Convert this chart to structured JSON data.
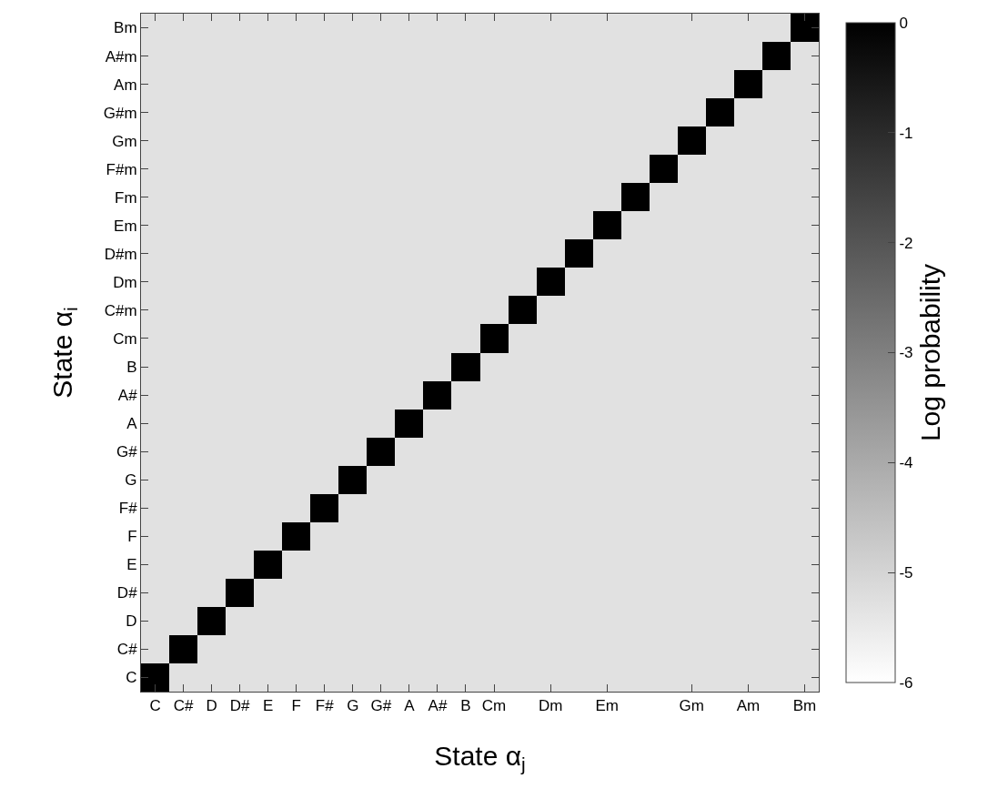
{
  "chart_data": {
    "type": "heatmap",
    "xlabel": "State α$_{j}$",
    "ylabel": "State α$_{i}$",
    "clabel": "Log probability",
    "categories": [
      "C",
      "C#",
      "D",
      "D#",
      "E",
      "F",
      "F#",
      "G",
      "G#",
      "A",
      "A#",
      "B",
      "Cm",
      null,
      "Dm",
      null,
      "Em",
      null,
      null,
      "Gm",
      null,
      "Am",
      null,
      "Bm"
    ],
    "y_categories": [
      "Bm",
      "A#m",
      "Am",
      "G#m",
      "Gm",
      "F#m",
      "Fm",
      "Em",
      "D#m",
      "Dm",
      "C#m",
      "Cm",
      "B",
      "A#",
      "A",
      "G#",
      "G",
      "F#",
      "F",
      "E",
      "D#",
      "D",
      "C#",
      "C"
    ],
    "cells": [
      [
        -5.3,
        -5.3,
        -5.3,
        -5.3,
        -5.3,
        -5.3,
        -5.3,
        -5.3,
        -5.3,
        -5.3,
        -5.3,
        -5.3,
        -5.3,
        -5.3,
        -5.3,
        -5.3,
        -5.3,
        -5.3,
        -5.3,
        -5.3,
        -5.3,
        -5.3,
        -5.3,
        0
      ],
      [
        -5.3,
        -5.3,
        -5.3,
        -5.3,
        -5.3,
        -5.3,
        -5.3,
        -5.3,
        -5.3,
        -5.3,
        -5.3,
        -5.3,
        -5.3,
        -5.3,
        -5.3,
        -5.3,
        -5.3,
        -5.3,
        -5.3,
        -5.3,
        -5.3,
        -5.3,
        0,
        -5.3
      ],
      [
        -5.3,
        -5.3,
        -5.3,
        -5.3,
        -5.3,
        -5.3,
        -5.3,
        -5.3,
        -5.3,
        -5.3,
        -5.3,
        -5.3,
        -5.3,
        -5.3,
        -5.3,
        -5.3,
        -5.3,
        -5.3,
        -5.3,
        -5.3,
        -5.3,
        0,
        -5.3,
        -5.3
      ],
      [
        -5.3,
        -5.3,
        -5.3,
        -5.3,
        -5.3,
        -5.3,
        -5.3,
        -5.3,
        -5.3,
        -5.3,
        -5.3,
        -5.3,
        -5.3,
        -5.3,
        -5.3,
        -5.3,
        -5.3,
        -5.3,
        -5.3,
        -5.3,
        0,
        -5.3,
        -5.3,
        -5.3
      ],
      [
        -5.3,
        -5.3,
        -5.3,
        -5.3,
        -5.3,
        -5.3,
        -5.3,
        -5.3,
        -5.3,
        -5.3,
        -5.3,
        -5.3,
        -5.3,
        -5.3,
        -5.3,
        -5.3,
        -5.3,
        -5.3,
        -5.3,
        0,
        -5.3,
        -5.3,
        -5.3,
        -5.3
      ],
      [
        -5.3,
        -5.3,
        -5.3,
        -5.3,
        -5.3,
        -5.3,
        -5.3,
        -5.3,
        -5.3,
        -5.3,
        -5.3,
        -5.3,
        -5.3,
        -5.3,
        -5.3,
        -5.3,
        -5.3,
        -5.3,
        0,
        -5.3,
        -5.3,
        -5.3,
        -5.3,
        -5.3
      ],
      [
        -5.3,
        -5.3,
        -5.3,
        -5.3,
        -5.3,
        -5.3,
        -5.3,
        -5.3,
        -5.3,
        -5.3,
        -5.3,
        -5.3,
        -5.3,
        -5.3,
        -5.3,
        -5.3,
        -5.3,
        0,
        -5.3,
        -5.3,
        -5.3,
        -5.3,
        -5.3,
        -5.3
      ],
      [
        -5.3,
        -5.3,
        -5.3,
        -5.3,
        -5.3,
        -5.3,
        -5.3,
        -5.3,
        -5.3,
        -5.3,
        -5.3,
        -5.3,
        -5.3,
        -5.3,
        -5.3,
        -5.3,
        0,
        -5.3,
        -5.3,
        -5.3,
        -5.3,
        -5.3,
        -5.3,
        -5.3
      ],
      [
        -5.3,
        -5.3,
        -5.3,
        -5.3,
        -5.3,
        -5.3,
        -5.3,
        -5.3,
        -5.3,
        -5.3,
        -5.3,
        -5.3,
        -5.3,
        -5.3,
        -5.3,
        0,
        -5.3,
        -5.3,
        -5.3,
        -5.3,
        -5.3,
        -5.3,
        -5.3,
        -5.3
      ],
      [
        -5.3,
        -5.3,
        -5.3,
        -5.3,
        -5.3,
        -5.3,
        -5.3,
        -5.3,
        -5.3,
        -5.3,
        -5.3,
        -5.3,
        -5.3,
        -5.3,
        0,
        -5.3,
        -5.3,
        -5.3,
        -5.3,
        -5.3,
        -5.3,
        -5.3,
        -5.3,
        -5.3
      ],
      [
        -5.3,
        -5.3,
        -5.3,
        -5.3,
        -5.3,
        -5.3,
        -5.3,
        -5.3,
        -5.3,
        -5.3,
        -5.3,
        -5.3,
        -5.3,
        0,
        -5.3,
        -5.3,
        -5.3,
        -5.3,
        -5.3,
        -5.3,
        -5.3,
        -5.3,
        -5.3,
        -5.3
      ],
      [
        -5.3,
        -5.3,
        -5.3,
        -5.3,
        -5.3,
        -5.3,
        -5.3,
        -5.3,
        -5.3,
        -5.3,
        -5.3,
        -5.3,
        0,
        -5.3,
        -5.3,
        -5.3,
        -5.3,
        -5.3,
        -5.3,
        -5.3,
        -5.3,
        -5.3,
        -5.3,
        -5.3
      ],
      [
        -5.3,
        -5.3,
        -5.3,
        -5.3,
        -5.3,
        -5.3,
        -5.3,
        -5.3,
        -5.3,
        -5.3,
        -5.3,
        0,
        -5.3,
        -5.3,
        -5.3,
        -5.3,
        -5.3,
        -5.3,
        -5.3,
        -5.3,
        -5.3,
        -5.3,
        -5.3,
        -5.3
      ],
      [
        -5.3,
        -5.3,
        -5.3,
        -5.3,
        -5.3,
        -5.3,
        -5.3,
        -5.3,
        -5.3,
        -5.3,
        0,
        -5.3,
        -5.3,
        -5.3,
        -5.3,
        -5.3,
        -5.3,
        -5.3,
        -5.3,
        -5.3,
        -5.3,
        -5.3,
        -5.3,
        -5.3
      ],
      [
        -5.3,
        -5.3,
        -5.3,
        -5.3,
        -5.3,
        -5.3,
        -5.3,
        -5.3,
        -5.3,
        0,
        -5.3,
        -5.3,
        -5.3,
        -5.3,
        -5.3,
        -5.3,
        -5.3,
        -5.3,
        -5.3,
        -5.3,
        -5.3,
        -5.3,
        -5.3,
        -5.3
      ],
      [
        -5.3,
        -5.3,
        -5.3,
        -5.3,
        -5.3,
        -5.3,
        -5.3,
        -5.3,
        0,
        -5.3,
        -5.3,
        -5.3,
        -5.3,
        -5.3,
        -5.3,
        -5.3,
        -5.3,
        -5.3,
        -5.3,
        -5.3,
        -5.3,
        -5.3,
        -5.3,
        -5.3
      ],
      [
        -5.3,
        -5.3,
        -5.3,
        -5.3,
        -5.3,
        -5.3,
        -5.3,
        0,
        -5.3,
        -5.3,
        -5.3,
        -5.3,
        -5.3,
        -5.3,
        -5.3,
        -5.3,
        -5.3,
        -5.3,
        -5.3,
        -5.3,
        -5.3,
        -5.3,
        -5.3,
        -5.3
      ],
      [
        -5.3,
        -5.3,
        -5.3,
        -5.3,
        -5.3,
        -5.3,
        0,
        -5.3,
        -5.3,
        -5.3,
        -5.3,
        -5.3,
        -5.3,
        -5.3,
        -5.3,
        -5.3,
        -5.3,
        -5.3,
        -5.3,
        -5.3,
        -5.3,
        -5.3,
        -5.3,
        -5.3
      ],
      [
        -5.3,
        -5.3,
        -5.3,
        -5.3,
        -5.3,
        0,
        -5.3,
        -5.3,
        -5.3,
        -5.3,
        -5.3,
        -5.3,
        -5.3,
        -5.3,
        -5.3,
        -5.3,
        -5.3,
        -5.3,
        -5.3,
        -5.3,
        -5.3,
        -5.3,
        -5.3,
        -5.3
      ],
      [
        -5.3,
        -5.3,
        -5.3,
        -5.3,
        0,
        -5.3,
        -5.3,
        -5.3,
        -5.3,
        -5.3,
        -5.3,
        -5.3,
        -5.3,
        -5.3,
        -5.3,
        -5.3,
        -5.3,
        -5.3,
        -5.3,
        -5.3,
        -5.3,
        -5.3,
        -5.3,
        -5.3
      ],
      [
        -5.3,
        -5.3,
        -5.3,
        0,
        -5.3,
        -5.3,
        -5.3,
        -5.3,
        -5.3,
        -5.3,
        -5.3,
        -5.3,
        -5.3,
        -5.3,
        -5.3,
        -5.3,
        -5.3,
        -5.3,
        -5.3,
        -5.3,
        -5.3,
        -5.3,
        -5.3,
        -5.3
      ],
      [
        -5.3,
        -5.3,
        0,
        -5.3,
        -5.3,
        -5.3,
        -5.3,
        -5.3,
        -5.3,
        -5.3,
        -5.3,
        -5.3,
        -5.3,
        -5.3,
        -5.3,
        -5.3,
        -5.3,
        -5.3,
        -5.3,
        -5.3,
        -5.3,
        -5.3,
        -5.3,
        -5.3
      ],
      [
        -5.3,
        0,
        -5.3,
        -5.3,
        -5.3,
        -5.3,
        -5.3,
        -5.3,
        -5.3,
        -5.3,
        -5.3,
        -5.3,
        -5.3,
        -5.3,
        -5.3,
        -5.3,
        -5.3,
        -5.3,
        -5.3,
        -5.3,
        -5.3,
        -5.3,
        -5.3,
        -5.3
      ],
      [
        0,
        -5.3,
        -5.3,
        -5.3,
        -5.3,
        -5.3,
        -5.3,
        -5.3,
        -5.3,
        -5.3,
        -5.3,
        -5.3,
        -5.3,
        -5.3,
        -5.3,
        -5.3,
        -5.3,
        -5.3,
        -5.3,
        -5.3,
        -5.3,
        -5.3,
        -5.3,
        -5.3
      ]
    ],
    "clim": [
      -6,
      0
    ],
    "cticks": [
      -6,
      -5,
      -4,
      -3,
      -2,
      -1,
      0
    ]
  }
}
